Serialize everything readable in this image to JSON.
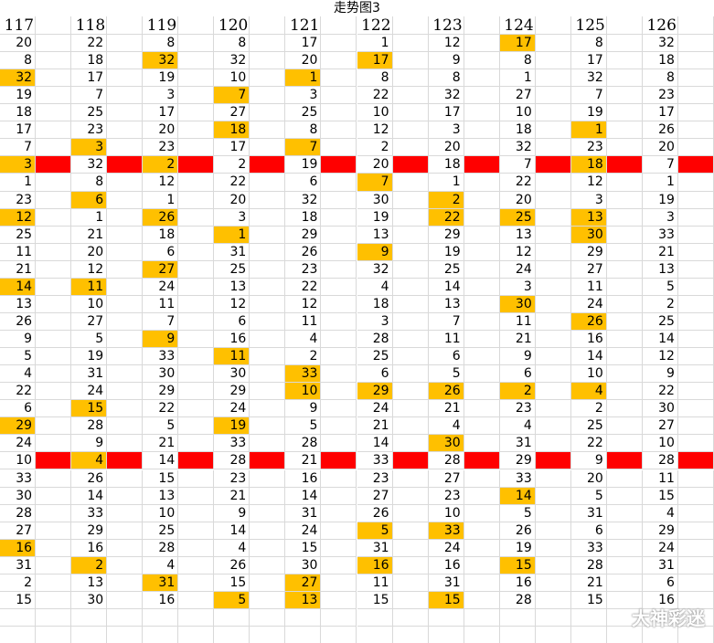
{
  "title": "走势图3",
  "watermark": "大神彩迷",
  "highlight_color": "#ffc000",
  "band_color": "#ff0000",
  "table": {
    "columns": [
      "117",
      "118",
      "119",
      "120",
      "121",
      "122",
      "123",
      "124",
      "125",
      "126"
    ],
    "rows": [
      [
        20,
        22,
        8,
        8,
        17,
        1,
        12,
        17,
        8,
        32
      ],
      [
        8,
        18,
        32,
        32,
        20,
        17,
        9,
        8,
        17,
        18
      ],
      [
        32,
        17,
        19,
        10,
        1,
        8,
        8,
        1,
        32,
        8
      ],
      [
        19,
        7,
        3,
        7,
        3,
        22,
        32,
        27,
        7,
        23
      ],
      [
        18,
        25,
        17,
        27,
        25,
        10,
        17,
        10,
        19,
        17
      ],
      [
        17,
        23,
        20,
        18,
        8,
        12,
        3,
        18,
        1,
        26
      ],
      [
        7,
        3,
        23,
        17,
        7,
        2,
        20,
        32,
        23,
        20
      ],
      [
        3,
        32,
        2,
        2,
        19,
        20,
        18,
        7,
        18,
        7
      ],
      [
        1,
        8,
        12,
        22,
        6,
        7,
        1,
        22,
        12,
        1
      ],
      [
        23,
        6,
        1,
        20,
        32,
        30,
        2,
        20,
        3,
        19
      ],
      [
        12,
        1,
        26,
        3,
        18,
        19,
        22,
        25,
        13,
        3
      ],
      [
        25,
        21,
        18,
        1,
        29,
        13,
        29,
        13,
        30,
        33
      ],
      [
        11,
        20,
        6,
        31,
        26,
        9,
        19,
        12,
        29,
        21
      ],
      [
        21,
        12,
        27,
        25,
        23,
        32,
        25,
        24,
        27,
        13
      ],
      [
        14,
        11,
        24,
        13,
        22,
        4,
        14,
        3,
        11,
        5
      ],
      [
        13,
        10,
        11,
        12,
        12,
        18,
        13,
        30,
        24,
        2
      ],
      [
        26,
        27,
        7,
        6,
        11,
        3,
        7,
        11,
        26,
        25
      ],
      [
        9,
        5,
        9,
        16,
        4,
        28,
        11,
        21,
        16,
        14
      ],
      [
        5,
        19,
        33,
        11,
        2,
        25,
        6,
        9,
        14,
        12
      ],
      [
        4,
        31,
        30,
        30,
        33,
        6,
        5,
        6,
        10,
        9
      ],
      [
        22,
        24,
        29,
        29,
        10,
        29,
        26,
        2,
        4,
        22
      ],
      [
        6,
        15,
        22,
        24,
        9,
        24,
        21,
        23,
        2,
        30
      ],
      [
        29,
        28,
        5,
        19,
        5,
        21,
        4,
        4,
        25,
        27
      ],
      [
        24,
        9,
        21,
        33,
        28,
        14,
        30,
        31,
        22,
        10
      ],
      [
        10,
        4,
        14,
        28,
        21,
        33,
        28,
        29,
        9,
        28
      ],
      [
        33,
        26,
        15,
        23,
        16,
        23,
        27,
        33,
        20,
        11
      ],
      [
        30,
        14,
        13,
        21,
        14,
        27,
        23,
        14,
        5,
        15
      ],
      [
        28,
        33,
        10,
        9,
        31,
        26,
        10,
        5,
        31,
        4
      ],
      [
        27,
        29,
        25,
        14,
        24,
        5,
        33,
        26,
        6,
        29
      ],
      [
        16,
        16,
        28,
        4,
        15,
        31,
        24,
        19,
        33,
        24
      ],
      [
        31,
        2,
        4,
        26,
        30,
        16,
        16,
        15,
        28,
        31
      ],
      [
        2,
        13,
        31,
        15,
        27,
        11,
        31,
        16,
        21,
        6
      ],
      [
        15,
        30,
        16,
        5,
        13,
        15,
        15,
        28,
        15,
        16
      ]
    ],
    "highlighted": [
      [
        7
      ],
      [
        2,
        5
      ],
      [
        0,
        4
      ],
      [
        3
      ],
      [],
      [
        3,
        8
      ],
      [
        1,
        4
      ],
      [
        0,
        2,
        8
      ],
      [
        5
      ],
      [
        1,
        6
      ],
      [
        0,
        2,
        6,
        7,
        8
      ],
      [
        3,
        8
      ],
      [
        5
      ],
      [
        2
      ],
      [
        0,
        1
      ],
      [
        7
      ],
      [
        8
      ],
      [
        2
      ],
      [
        3
      ],
      [
        4
      ],
      [
        4,
        5,
        6,
        7,
        8
      ],
      [
        1
      ],
      [
        0,
        3
      ],
      [
        6
      ],
      [
        1
      ],
      [],
      [
        7
      ],
      [],
      [
        5,
        6
      ],
      [
        0
      ],
      [
        1,
        5,
        7
      ],
      [
        2,
        4
      ],
      [
        3,
        4,
        6
      ]
    ],
    "band_rows": [
      7,
      24
    ]
  }
}
